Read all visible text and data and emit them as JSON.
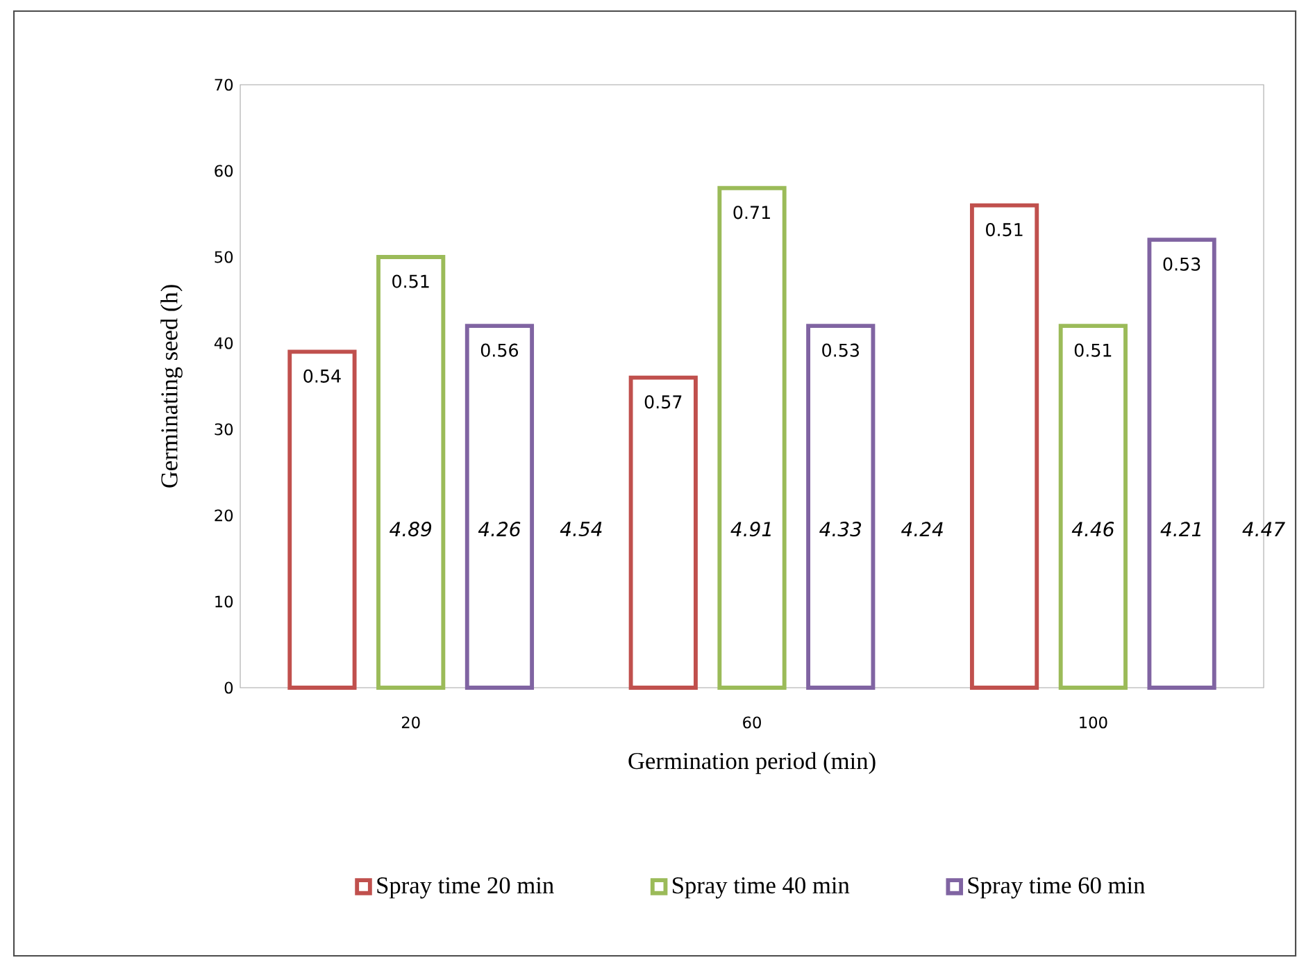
{
  "chart_data": {
    "type": "bar",
    "xlabel": "Germination period (min)",
    "ylabel": "Germinating seed (h)",
    "categories": [
      "20",
      "60",
      "100"
    ],
    "ylim": [
      0,
      70
    ],
    "yticks": [
      0,
      10,
      20,
      30,
      40,
      50,
      60,
      70
    ],
    "legend": "bottom",
    "series": [
      {
        "name": "Spray time 20 min",
        "color": "#c0504d",
        "values": [
          39,
          36,
          56
        ]
      },
      {
        "name": "Spray time 40 min",
        "color": "#9bbb59",
        "values": [
          50,
          58,
          42
        ]
      },
      {
        "name": "Spray time 60 min",
        "color": "#8064a2",
        "values": [
          42,
          42,
          52
        ]
      }
    ],
    "annotations": [
      "0.54",
      "0.57",
      "0.51",
      "0.51",
      "0.71",
      "0.51",
      "0.56",
      "0.53",
      "0.53",
      "4.89",
      "4.26",
      "4.54",
      "4.91",
      "4.33",
      "4.24",
      "4.46",
      "4.21",
      "4.47"
    ]
  }
}
